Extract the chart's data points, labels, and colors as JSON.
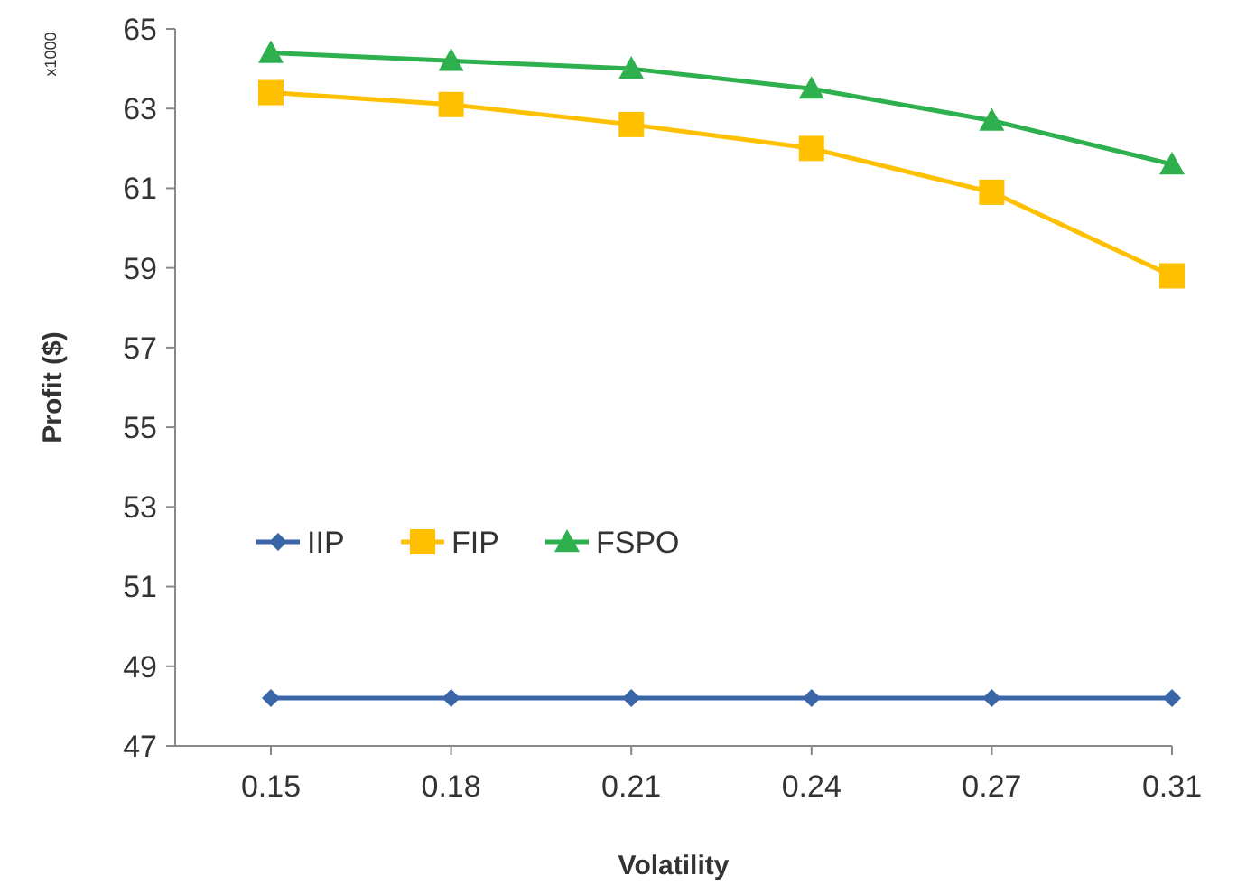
{
  "chart_data": {
    "type": "line",
    "xlabel": "Volatility",
    "ylabel": "Profit ($)",
    "annotations": [
      "x1000"
    ],
    "categories": [
      "0.15",
      "0.18",
      "0.21",
      "0.24",
      "0.27",
      "0.31"
    ],
    "ylim": [
      47,
      65
    ],
    "yticks": [
      47,
      49,
      51,
      53,
      55,
      57,
      59,
      61,
      63,
      65
    ],
    "grid": false,
    "legend": "left",
    "line_style": "solid",
    "series": [
      {
        "name": "IIP",
        "color": "#3a66a8",
        "marker": "diamond",
        "values": [
          48.2,
          48.2,
          48.2,
          48.2,
          48.2,
          48.2
        ]
      },
      {
        "name": "FIP",
        "color": "#ffc000",
        "marker": "square",
        "values": [
          63.4,
          63.1,
          62.6,
          62.0,
          60.9,
          58.8
        ]
      },
      {
        "name": "FSPO",
        "color": "#2eb04e",
        "marker": "triangle",
        "values": [
          64.4,
          64.2,
          64.0,
          63.5,
          62.7,
          61.6
        ]
      }
    ]
  }
}
